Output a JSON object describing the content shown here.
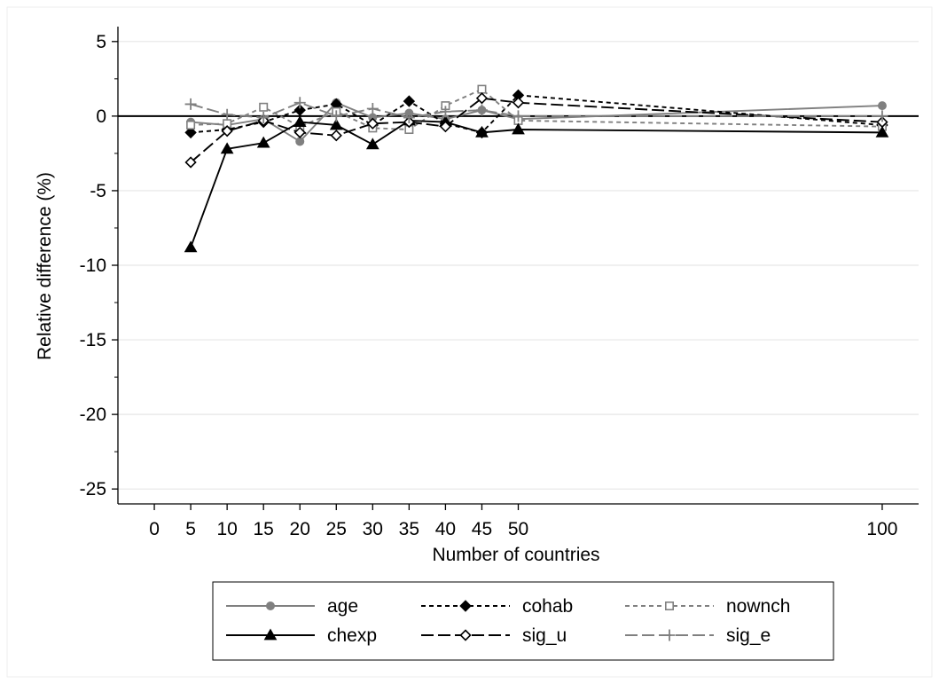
{
  "chart_data": {
    "type": "line",
    "title": "",
    "xlabel": "Number of countries",
    "ylabel": "Relative difference (%)",
    "xlim": [
      -5,
      105
    ],
    "ylim": [
      -26,
      6
    ],
    "x_ticks": [
      0,
      5,
      10,
      15,
      20,
      25,
      30,
      35,
      40,
      45,
      50,
      100
    ],
    "x_tick_labels": [
      "0",
      "5",
      "10",
      "15",
      "20",
      "25",
      "30",
      "35",
      "40",
      "45",
      "50",
      "100"
    ],
    "y_ticks": [
      5,
      0,
      -5,
      -10,
      -15,
      -20,
      -25
    ],
    "y_tick_labels": [
      "5",
      "0",
      "-5",
      "-10",
      "-15",
      "-20",
      "-25"
    ],
    "grid": true,
    "reference_line": 0,
    "legend_position": "bottom",
    "x": [
      5,
      10,
      15,
      20,
      25,
      30,
      35,
      40,
      45,
      50,
      100
    ],
    "series": [
      {
        "name": "age",
        "values": [
          -0.4,
          -0.6,
          -0.2,
          -1.7,
          0.9,
          -0.1,
          0.2,
          -0.2,
          0.4,
          -0.2,
          0.7
        ],
        "color": "#808080",
        "dash": "solid",
        "marker": "circle"
      },
      {
        "name": "cohab",
        "values": [
          -1.1,
          -0.9,
          -0.4,
          0.4,
          0.8,
          -0.6,
          1.0,
          -0.5,
          -1.1,
          1.4,
          -0.6
        ],
        "color": "#000000",
        "dash": "short",
        "marker": "diamond"
      },
      {
        "name": "nownch",
        "values": [
          -0.6,
          -0.5,
          0.6,
          -0.7,
          0.3,
          -0.8,
          -0.9,
          0.7,
          1.8,
          -0.3,
          -0.7
        ],
        "color": "#808080",
        "dash": "short",
        "marker": "square"
      },
      {
        "name": "chexp",
        "values": [
          -8.8,
          -2.2,
          -1.8,
          -0.4,
          -0.6,
          -1.9,
          -0.3,
          -0.4,
          -1.1,
          -0.9,
          -1.1
        ],
        "color": "#000000",
        "dash": "solid",
        "marker": "triangle"
      },
      {
        "name": "sig_u",
        "values": [
          -3.1,
          -1.0,
          -0.3,
          -1.1,
          -1.3,
          -0.5,
          -0.4,
          -0.7,
          1.2,
          0.9,
          -0.4
        ],
        "color": "#000000",
        "dash": "long",
        "marker": "diamond-open"
      },
      {
        "name": "sig_e",
        "values": [
          0.8,
          0.1,
          -0.1,
          0.9,
          0.0,
          0.5,
          -0.1,
          0.3,
          0.4,
          0.0,
          0.0
        ],
        "color": "#808080",
        "dash": "long",
        "marker": "plus"
      }
    ]
  }
}
